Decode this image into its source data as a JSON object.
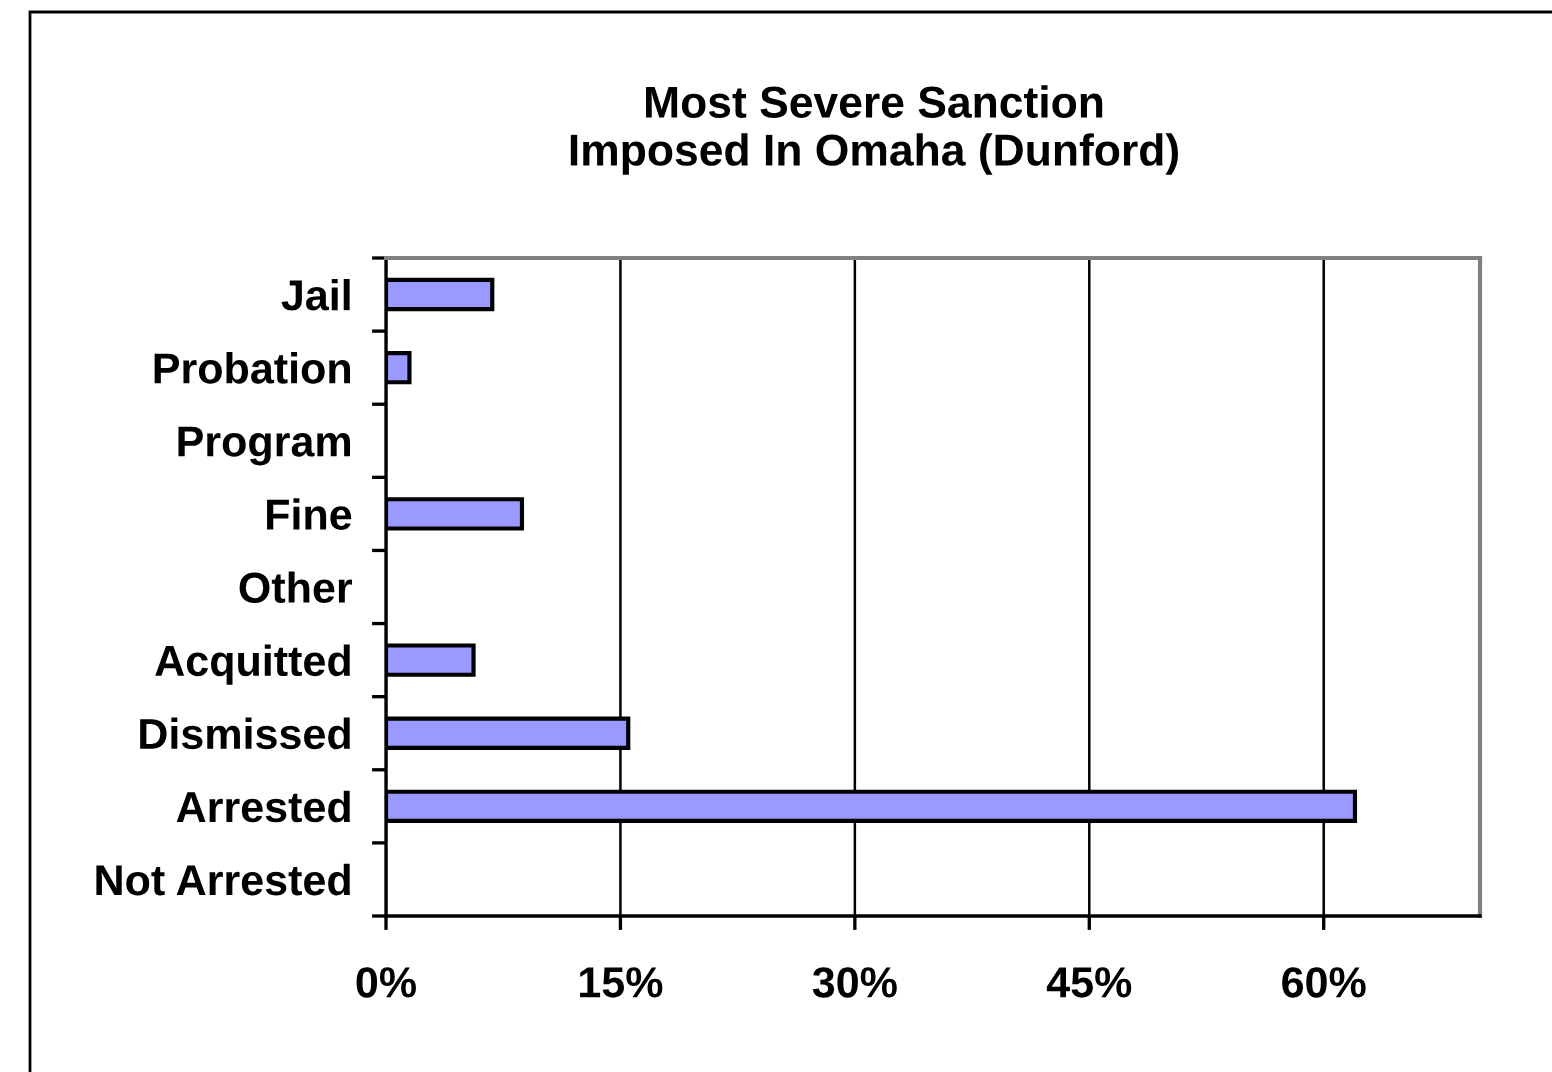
{
  "chart_data": {
    "type": "bar",
    "orientation": "horizontal",
    "title": "Most Severe Sanction\nImposed In Omaha (Dunford)",
    "categories": [
      "Jail",
      "Probation",
      "Program",
      "Fine",
      "Other",
      "Acquitted",
      "Dismissed",
      "Arrested",
      "Not Arrested"
    ],
    "values": [
      6.8,
      1.5,
      null,
      8.7,
      null,
      5.6,
      15.5,
      62,
      null
    ],
    "color": "#9999ff",
    "xlim": [
      0,
      70
    ],
    "xticks": [
      {
        "value": 0,
        "label": "0%"
      },
      {
        "value": 15,
        "label": "15%"
      },
      {
        "value": 30,
        "label": "30%"
      },
      {
        "value": 45,
        "label": "45%"
      },
      {
        "value": 60,
        "label": "60%"
      }
    ],
    "grid": "x",
    "legend": false
  }
}
